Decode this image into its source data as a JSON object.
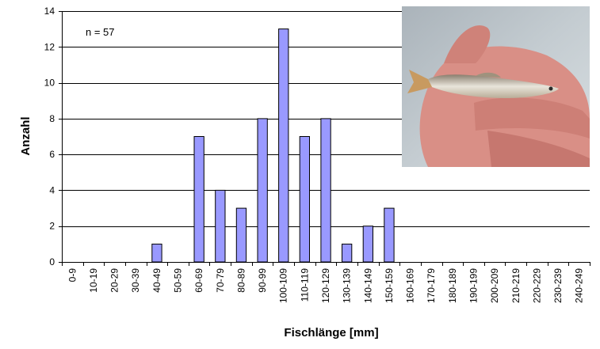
{
  "chart_data": {
    "type": "bar",
    "xlabel": "Fischlänge [mm]",
    "ylabel": "Anzahl",
    "annotation": "n = 57",
    "ylim": [
      0,
      14
    ],
    "yticks": [
      0,
      2,
      4,
      6,
      8,
      10,
      12,
      14
    ],
    "grid": true,
    "bar_color": "#9999ff",
    "categories": [
      "0-9",
      "10-19",
      "20-29",
      "30-39",
      "40-49",
      "50-59",
      "60-69",
      "70-79",
      "80-89",
      "90-99",
      "100-109",
      "110-119",
      "120-129",
      "130-139",
      "140-149",
      "150-159",
      "160-169",
      "170-179",
      "180-189",
      "190-199",
      "200-209",
      "210-219",
      "220-229",
      "230-239",
      "240-249"
    ],
    "values": [
      0,
      0,
      0,
      0,
      1,
      0,
      7,
      4,
      3,
      8,
      13,
      7,
      8,
      1,
      2,
      3,
      0,
      0,
      0,
      0,
      0,
      0,
      0,
      0,
      0
    ]
  },
  "photo": {
    "subject": "fish-in-hand-photo"
  }
}
